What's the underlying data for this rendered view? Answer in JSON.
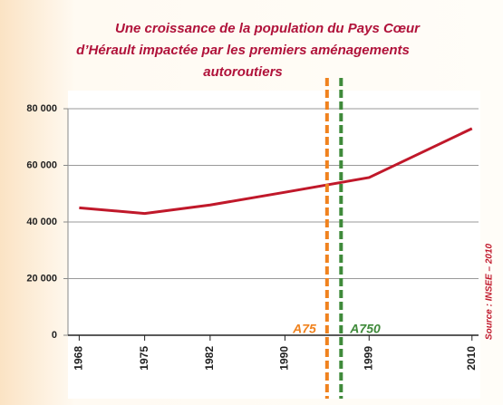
{
  "chart_data": {
    "type": "line",
    "title": [
      "Une croissance de la population du Pays Cœur",
      "d’Hérault  impactée par les premiers aménagements",
      "autoroutiers"
    ],
    "x": [
      1968,
      1975,
      1982,
      1990,
      1999,
      2010
    ],
    "series": [
      {
        "color": "#c0182a",
        "values": [
          45000,
          43000,
          46000,
          50500,
          55700,
          73000
        ]
      }
    ],
    "xlim": [
      1966.8,
      2010.7
    ],
    "xticks": [
      1968,
      1975,
      1982,
      1990,
      1999,
      2010
    ],
    "ylim": [
      0,
      80000
    ],
    "yticks": [
      0,
      {
        "value": 20000,
        "label": "20 000"
      },
      {
        "value": 40000,
        "label": "40 000"
      },
      {
        "value": 60000,
        "label": "60 000"
      },
      {
        "value": 80000,
        "label": "80 000"
      }
    ],
    "grid": true,
    "annotations": [
      {
        "label": "A75",
        "x": 1994.5,
        "color": "#f0821e"
      },
      {
        "label": "A750",
        "x": 1996,
        "color": "#3f8a3a"
      }
    ],
    "source": "Source : INSEE – 2010"
  }
}
